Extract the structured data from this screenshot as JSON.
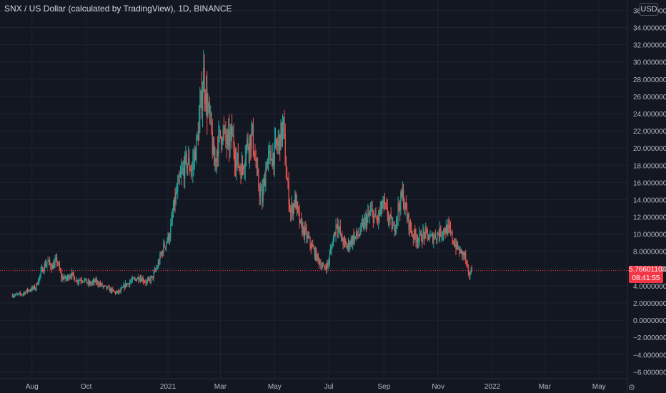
{
  "header": {
    "title": "SNX / US Dollar (calculated by TradingView), 1D, BINANCE",
    "currency": "USD"
  },
  "last_price": {
    "value": "5.76601103",
    "countdown": "08:41:55",
    "color": "#f23645"
  },
  "colors": {
    "background": "#131722",
    "grid": "#1f2330",
    "up": "#26a69a",
    "down": "#ef5350",
    "text": "#b2b5be"
  },
  "icons": {
    "settings": "gear-icon"
  },
  "chart_data": {
    "type": "candlestick",
    "title": "SNX / US Dollar (calculated by TradingView), 1D, BINANCE",
    "y_tick_labels": [
      "36.0000000",
      "34.0000000",
      "32.0000000",
      "30.0000000",
      "28.0000000",
      "26.0000000",
      "24.0000000",
      "22.0000000",
      "20.0000000",
      "18.0000000",
      "16.0000000",
      "14.0000000",
      "12.0000000",
      "10.0000000",
      "8.0000000",
      "6.0000000",
      "4.0000000",
      "2.0000000",
      "0.0000000",
      "−2.0000000",
      "−4.0000000",
      "−6.0000000"
    ],
    "y_ticks": [
      36,
      34,
      32,
      30,
      28,
      26,
      24,
      22,
      20,
      18,
      16,
      14,
      12,
      10,
      8,
      6,
      4,
      2,
      0,
      -2,
      -4,
      -6
    ],
    "x_tick_labels": [
      "Aug",
      "Oct",
      "2021",
      "Mar",
      "May",
      "Jul",
      "Sep",
      "Nov",
      "2022",
      "Mar",
      "May"
    ],
    "x_ticks": [
      "2020-08-01",
      "2020-10-01",
      "2021-01-01",
      "2021-03-01",
      "2021-05-01",
      "2021-07-01",
      "2021-09-01",
      "2021-11-01",
      "2022-01-01",
      "2022-03-01",
      "2022-05-01"
    ],
    "ylim": [
      -6.8,
      37.2
    ],
    "xlim": [
      "2020-06-26",
      "2022-06-02"
    ],
    "grid": true,
    "price_line": 5.766,
    "close_path": [
      [
        "2020-07-10",
        2.9
      ],
      [
        "2020-07-20",
        3.0
      ],
      [
        "2020-07-28",
        3.5
      ],
      [
        "2020-08-05",
        3.8
      ],
      [
        "2020-08-12",
        5.8
      ],
      [
        "2020-08-18",
        6.8
      ],
      [
        "2020-08-24",
        6.2
      ],
      [
        "2020-08-29",
        7.0
      ],
      [
        "2020-09-03",
        5.0
      ],
      [
        "2020-09-08",
        4.8
      ],
      [
        "2020-09-14",
        5.4
      ],
      [
        "2020-09-20",
        4.6
      ],
      [
        "2020-09-27",
        4.8
      ],
      [
        "2020-10-04",
        4.2
      ],
      [
        "2020-10-12",
        4.5
      ],
      [
        "2020-10-20",
        3.9
      ],
      [
        "2020-10-27",
        3.6
      ],
      [
        "2020-11-03",
        3.2
      ],
      [
        "2020-11-08",
        3.3
      ],
      [
        "2020-11-14",
        4.1
      ],
      [
        "2020-11-22",
        4.6
      ],
      [
        "2020-11-30",
        5.0
      ],
      [
        "2020-12-08",
        4.4
      ],
      [
        "2020-12-14",
        4.9
      ],
      [
        "2020-12-20",
        6.2
      ],
      [
        "2020-12-27",
        8.5
      ],
      [
        "2021-01-03",
        10.0
      ],
      [
        "2021-01-09",
        14.0
      ],
      [
        "2021-01-15",
        16.5
      ],
      [
        "2021-01-22",
        18.5
      ],
      [
        "2021-01-28",
        17.5
      ],
      [
        "2021-02-03",
        21.0
      ],
      [
        "2021-02-07",
        25.0
      ],
      [
        "2021-02-10",
        28.5
      ],
      [
        "2021-02-14",
        25.0
      ],
      [
        "2021-02-18",
        22.5
      ],
      [
        "2021-02-22",
        18.0
      ],
      [
        "2021-02-26",
        20.5
      ],
      [
        "2021-03-03",
        22.0
      ],
      [
        "2021-03-09",
        20.5
      ],
      [
        "2021-03-14",
        21.5
      ],
      [
        "2021-03-19",
        18.5
      ],
      [
        "2021-03-25",
        17.5
      ],
      [
        "2021-03-31",
        20.5
      ],
      [
        "2021-04-06",
        21.5
      ],
      [
        "2021-04-12",
        16.0
      ],
      [
        "2021-04-17",
        14.0
      ],
      [
        "2021-04-22",
        18.5
      ],
      [
        "2021-04-28",
        19.0
      ],
      [
        "2021-05-03",
        20.0
      ],
      [
        "2021-05-08",
        21.5
      ],
      [
        "2021-05-11",
        22.5
      ],
      [
        "2021-05-14",
        17.0
      ],
      [
        "2021-05-19",
        12.5
      ],
      [
        "2021-05-24",
        14.0
      ],
      [
        "2021-05-30",
        11.0
      ],
      [
        "2021-06-05",
        10.0
      ],
      [
        "2021-06-12",
        8.5
      ],
      [
        "2021-06-19",
        7.0
      ],
      [
        "2021-06-25",
        6.0
      ],
      [
        "2021-06-30",
        6.5
      ],
      [
        "2021-07-05",
        9.0
      ],
      [
        "2021-07-10",
        11.5
      ],
      [
        "2021-07-15",
        9.5
      ],
      [
        "2021-07-21",
        8.5
      ],
      [
        "2021-07-28",
        9.5
      ],
      [
        "2021-08-04",
        10.0
      ],
      [
        "2021-08-11",
        11.5
      ],
      [
        "2021-08-18",
        12.5
      ],
      [
        "2021-08-24",
        11.5
      ],
      [
        "2021-08-31",
        13.5
      ],
      [
        "2021-09-06",
        12.0
      ],
      [
        "2021-09-12",
        10.5
      ],
      [
        "2021-09-17",
        13.0
      ],
      [
        "2021-09-22",
        14.5
      ],
      [
        "2021-09-27",
        12.0
      ],
      [
        "2021-10-03",
        10.0
      ],
      [
        "2021-10-10",
        9.5
      ],
      [
        "2021-10-17",
        10.0
      ],
      [
        "2021-10-24",
        9.5
      ],
      [
        "2021-10-31",
        10.0
      ],
      [
        "2021-11-07",
        10.5
      ],
      [
        "2021-11-13",
        10.5
      ],
      [
        "2021-11-19",
        9.0
      ],
      [
        "2021-11-25",
        8.0
      ],
      [
        "2021-12-01",
        7.5
      ],
      [
        "2021-12-05",
        5.2
      ],
      [
        "2021-12-09",
        5.766
      ]
    ]
  }
}
